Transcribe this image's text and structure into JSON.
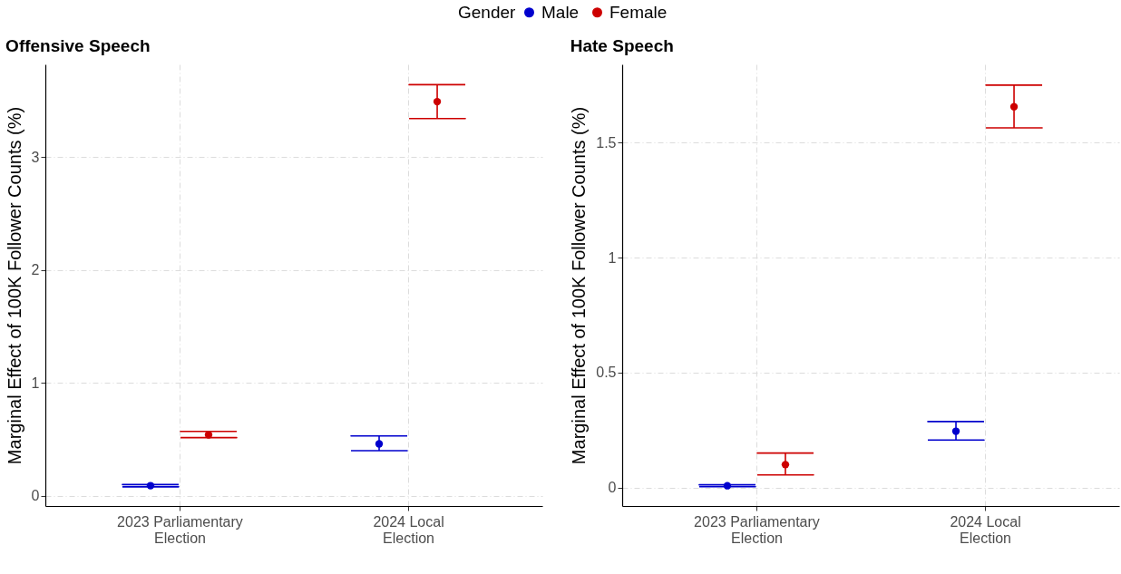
{
  "chart_data": [
    {
      "type": "scatter",
      "title": "Offensive Speech",
      "ylabel": "Marginal Effect of 100K Follower Counts (%)",
      "legend_title": "Gender",
      "legend": "top",
      "grid": true,
      "marker": "circle",
      "categories": [
        "2023 Parliamentary Election",
        "2024 Local Election"
      ],
      "ylim": [
        -0.09,
        3.82
      ],
      "yticks": [
        0,
        1,
        2,
        3
      ],
      "series": [
        {
          "name": "Male",
          "color": "#0000cd",
          "values": [
            0.09,
            0.46
          ],
          "errors": [
            [
              0.08,
              0.1
            ],
            [
              0.4,
              0.53
            ]
          ]
        },
        {
          "name": "Female",
          "color": "#cd0000",
          "values": [
            0.54,
            3.49
          ],
          "errors": [
            [
              0.515,
              0.57
            ],
            [
              3.34,
              3.64
            ]
          ]
        }
      ]
    },
    {
      "type": "scatter",
      "title": "Hate Speech",
      "ylabel": "Marginal Effect of 100K Follower Counts (%)",
      "grid": true,
      "marker": "circle",
      "categories": [
        "2023 Parliamentary Election",
        "2024 Local Election"
      ],
      "ylim": [
        -0.08,
        1.84
      ],
      "yticks": [
        0,
        0.5,
        1,
        1.5
      ],
      "series": [
        {
          "name": "Male",
          "color": "#0000cd",
          "values": [
            0.008,
            0.245
          ],
          "errors": [
            [
              0.004,
              0.012
            ],
            [
              0.207,
              0.287
            ]
          ]
        },
        {
          "name": "Female",
          "color": "#cd0000",
          "values": [
            0.1,
            1.656
          ],
          "errors": [
            [
              0.055,
              0.15
            ],
            [
              1.564,
              1.75
            ]
          ]
        }
      ]
    }
  ]
}
